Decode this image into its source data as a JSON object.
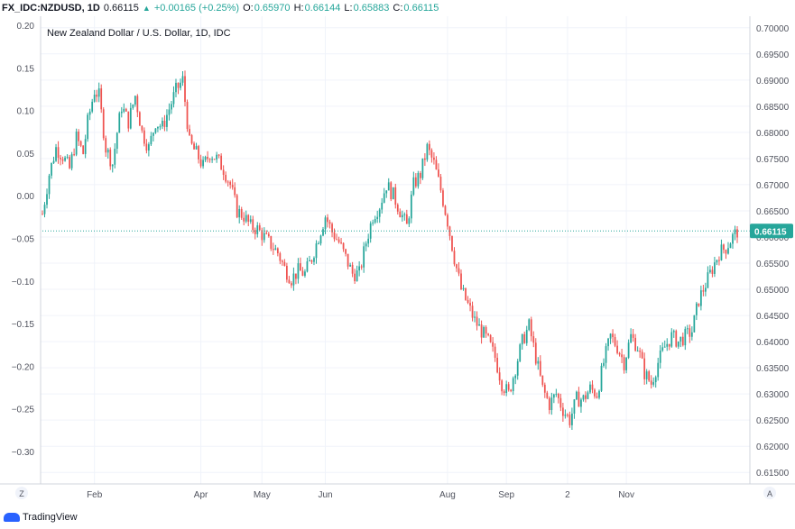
{
  "header": {
    "symbol": "FX_IDC:NZDUSD, 1D",
    "last": "0.66115",
    "change": "+0.00165 (+0.25%)",
    "o_label": "O:",
    "o_value": "0.65970",
    "h_label": "H:",
    "h_value": "0.66144",
    "l_label": "L:",
    "l_value": "0.65883",
    "c_label": "C:",
    "c_value": "0.66115"
  },
  "footer": {
    "brand": "TradingView",
    "left_axis_button": "Z",
    "right_axis_button": "A"
  },
  "colors": {
    "up": "#26a69a",
    "down": "#ef5350",
    "grid": "#f0f3fa",
    "axis_text": "#50535e",
    "price_line": "#26a69a"
  },
  "chart_data": {
    "type": "candlestick",
    "title": "New Zealand Dollar / U.S. Dollar, 1D, IDC",
    "last_price_label": "0.66115",
    "left_axis": {
      "ticks": [
        "0.20",
        "0.15",
        "0.10",
        "0.05",
        "0.00",
        "−0.05",
        "−0.10",
        "−0.15",
        "−0.20",
        "−0.25",
        "−0.30"
      ],
      "range": [
        -0.33,
        0.2
      ]
    },
    "right_axis": {
      "ticks": [
        "0.70000",
        "0.69500",
        "0.69000",
        "0.68500",
        "0.68000",
        "0.67500",
        "0.67000",
        "0.66500",
        "0.66000",
        "0.65500",
        "0.65000",
        "0.64500",
        "0.64000",
        "0.63500",
        "0.63000",
        "0.62500",
        "0.62000",
        "0.61500"
      ],
      "range": [
        0.6128,
        0.7022
      ]
    },
    "x_axis": {
      "labels": [
        "Feb",
        "Apr",
        "May",
        "Jun",
        "Aug",
        "Sep",
        "2",
        "Nov"
      ],
      "label_positions_day": [
        23,
        70,
        97,
        125,
        179,
        205,
        232,
        258
      ]
    },
    "series_path": [
      [
        0,
        0.6644
      ],
      [
        3,
        0.672
      ],
      [
        6,
        0.677
      ],
      [
        9,
        0.6755
      ],
      [
        12,
        0.673
      ],
      [
        15,
        0.679
      ],
      [
        18,
        0.676
      ],
      [
        20,
        0.682
      ],
      [
        23,
        0.688
      ],
      [
        25,
        0.687
      ],
      [
        28,
        0.677
      ],
      [
        31,
        0.674
      ],
      [
        33,
        0.68
      ],
      [
        35,
        0.685
      ],
      [
        38,
        0.682
      ],
      [
        41,
        0.687
      ],
      [
        44,
        0.68
      ],
      [
        47,
        0.677
      ],
      [
        50,
        0.682
      ],
      [
        53,
        0.681
      ],
      [
        56,
        0.6845
      ],
      [
        59,
        0.688
      ],
      [
        62,
        0.69
      ],
      [
        65,
        0.678
      ],
      [
        68,
        0.676
      ],
      [
        71,
        0.6735
      ],
      [
        74,
        0.676
      ],
      [
        77,
        0.675
      ],
      [
        80,
        0.673
      ],
      [
        83,
        0.67
      ],
      [
        86,
        0.665
      ],
      [
        89,
        0.664
      ],
      [
        92,
        0.662
      ],
      [
        95,
        0.6615
      ],
      [
        98,
        0.66
      ],
      [
        101,
        0.6585
      ],
      [
        104,
        0.657
      ],
      [
        107,
        0.654
      ],
      [
        110,
        0.652
      ],
      [
        113,
        0.6535
      ],
      [
        116,
        0.653
      ],
      [
        119,
        0.656
      ],
      [
        122,
        0.66
      ],
      [
        125,
        0.664
      ],
      [
        128,
        0.661
      ],
      [
        131,
        0.659
      ],
      [
        134,
        0.656
      ],
      [
        137,
        0.653
      ],
      [
        140,
        0.653
      ],
      [
        143,
        0.659
      ],
      [
        146,
        0.664
      ],
      [
        149,
        0.666
      ],
      [
        152,
        0.67
      ],
      [
        155,
        0.668
      ],
      [
        158,
        0.665
      ],
      [
        161,
        0.662
      ],
      [
        164,
        0.67
      ],
      [
        167,
        0.672
      ],
      [
        170,
        0.677
      ],
      [
        173,
        0.674
      ],
      [
        176,
        0.669
      ],
      [
        179,
        0.663
      ],
      [
        182,
        0.656
      ],
      [
        185,
        0.65
      ],
      [
        188,
        0.647
      ],
      [
        191,
        0.644
      ],
      [
        194,
        0.642
      ],
      [
        197,
        0.64
      ],
      [
        200,
        0.637
      ],
      [
        203,
        0.632
      ],
      [
        206,
        0.63
      ],
      [
        209,
        0.635
      ],
      [
        212,
        0.64
      ],
      [
        215,
        0.643
      ],
      [
        218,
        0.637
      ],
      [
        221,
        0.631
      ],
      [
        224,
        0.628
      ],
      [
        227,
        0.63
      ],
      [
        230,
        0.627
      ],
      [
        233,
        0.625
      ],
      [
        236,
        0.629
      ],
      [
        239,
        0.629
      ],
      [
        242,
        0.631
      ],
      [
        245,
        0.63
      ],
      [
        248,
        0.636
      ],
      [
        251,
        0.641
      ],
      [
        254,
        0.639
      ],
      [
        257,
        0.636
      ],
      [
        260,
        0.641
      ],
      [
        263,
        0.639
      ],
      [
        266,
        0.634
      ],
      [
        269,
        0.632
      ],
      [
        272,
        0.636
      ],
      [
        275,
        0.639
      ],
      [
        278,
        0.641
      ],
      [
        281,
        0.64
      ],
      [
        284,
        0.641
      ],
      [
        287,
        0.642
      ],
      [
        290,
        0.648
      ],
      [
        293,
        0.651
      ],
      [
        296,
        0.654
      ],
      [
        299,
        0.657
      ],
      [
        302,
        0.658
      ],
      [
        305,
        0.66
      ],
      [
        307,
        0.6611
      ]
    ],
    "total_days": 307
  }
}
